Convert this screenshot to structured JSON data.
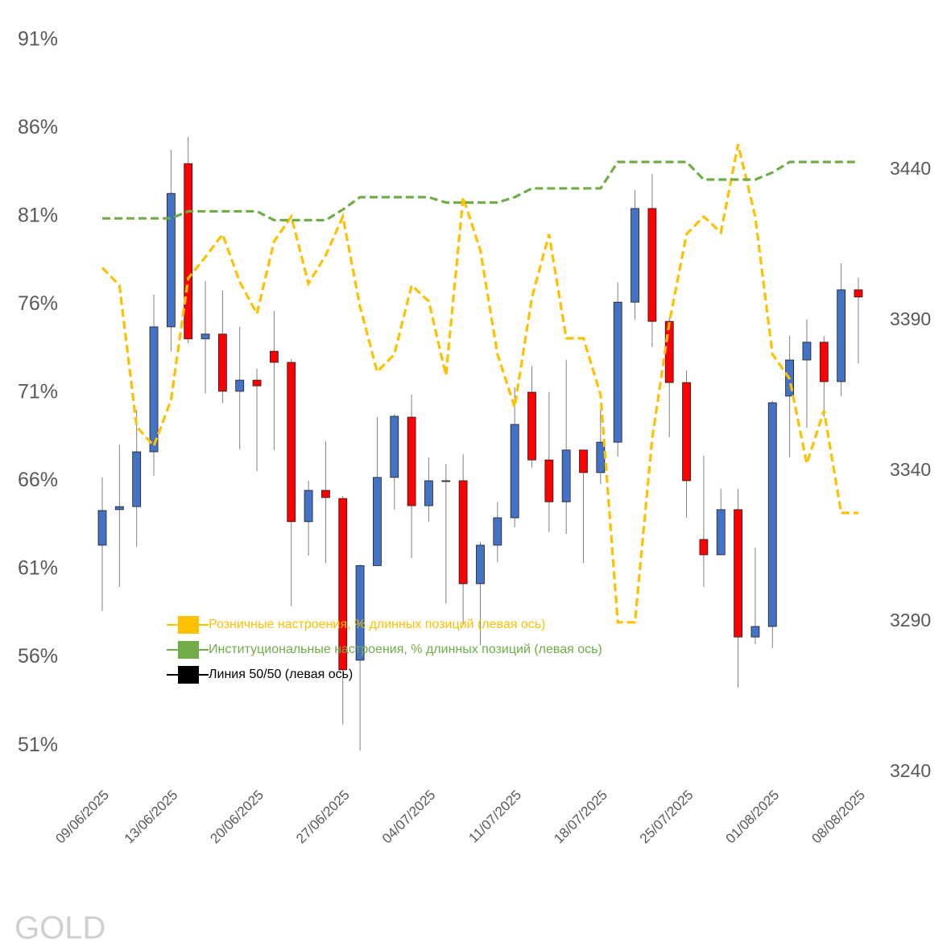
{
  "chart_data": {
    "type": "candlestick",
    "watermark": "GOLD",
    "categories": [
      "09/06/2025",
      null,
      null,
      null,
      "13/06/2025",
      null,
      null,
      null,
      null,
      "20/06/2025",
      null,
      null,
      null,
      null,
      "27/06/2025",
      null,
      null,
      null,
      null,
      "04/07/2025",
      null,
      null,
      null,
      null,
      "11/07/2025",
      null,
      null,
      null,
      null,
      "18/07/2025",
      null,
      null,
      null,
      null,
      "25/07/2025",
      null,
      null,
      null,
      null,
      "01/08/2025",
      null,
      null,
      null,
      null,
      "08/08/2025"
    ],
    "candles": {
      "axis": "y2",
      "up_color": "#4472c4",
      "down_color": "#ff0000",
      "open": [
        3315.4,
        3327.2,
        3328.2,
        3346.4,
        3387.9,
        3442.1,
        3383.9,
        3385.5,
        3366.5,
        3370.2,
        3379.8,
        3376.1,
        3323.2,
        3333.6,
        3330.9,
        3277.2,
        3308.6,
        3337.9,
        3357.9,
        3328.5,
        3336.8,
        3336.8,
        3302.6,
        3315.4,
        3324.5,
        3366.2,
        3343.7,
        3329.8,
        3347.0,
        3339.5,
        3349.6,
        3396.1,
        3427.2,
        3389.7,
        3369.4,
        3317.3,
        3312.2,
        3327.2,
        3284.9,
        3288.4,
        3364.9,
        3376.9,
        3382.8,
        3369.7,
        3400.2
      ],
      "high": [
        3337.9,
        3348.8,
        3360.3,
        3398.6,
        3446.7,
        3451.0,
        3403.1,
        3399.9,
        3387.9,
        3374.0,
        3393.2,
        3377.2,
        3336.8,
        3349.9,
        3331.7,
        3309.0,
        3357.9,
        3359.0,
        3365.4,
        3344.5,
        3342.4,
        3345.6,
        3316.5,
        3329.8,
        3367.8,
        3374.8,
        3366.2,
        3376.9,
        3347.0,
        3361.1,
        3402.6,
        3433.3,
        3438.7,
        3390.8,
        3373.4,
        3345.1,
        3334.1,
        3334.1,
        3314.6,
        3363.3,
        3384.9,
        3390.3,
        3384.9,
        3409.0,
        3404.2
      ],
      "low": [
        3293.5,
        3301.5,
        3314.9,
        3338.4,
        3379.6,
        3382.5,
        3365.7,
        3362.5,
        3347.2,
        3340.0,
        3347.0,
        3295.1,
        3311.9,
        3309.5,
        3255.8,
        3247.2,
        3308.6,
        3327.2,
        3311.1,
        3323.2,
        3296.1,
        3289.0,
        3282.2,
        3309.8,
        3321.3,
        3341.1,
        3319.7,
        3319.1,
        3309.5,
        3335.7,
        3344.8,
        3390.3,
        3381.2,
        3351.2,
        3324.5,
        3301.5,
        3312.2,
        3268.1,
        3282.5,
        3281.2,
        3344.5,
        3354.4,
        3357.9,
        3364.9,
        3375.8
      ],
      "close": [
        3326.9,
        3328.2,
        3346.4,
        3387.9,
        3432.2,
        3383.9,
        3385.5,
        3366.5,
        3370.2,
        3368.3,
        3376.1,
        3323.2,
        3333.6,
        3331.2,
        3274.0,
        3308.6,
        3337.9,
        3358.2,
        3328.5,
        3336.8,
        3336.8,
        3302.6,
        3315.4,
        3324.5,
        3355.5,
        3343.7,
        3329.8,
        3347.0,
        3339.5,
        3349.6,
        3396.1,
        3427.2,
        3389.7,
        3369.4,
        3336.8,
        3312.2,
        3327.2,
        3284.9,
        3288.4,
        3362.7,
        3376.9,
        3382.8,
        3369.7,
        3400.2,
        3397.8
      ]
    },
    "series": [
      {
        "name": "Розничные настроения, % длинных позиций (левая ось)",
        "color": "#ffc000",
        "values": [
          78.1,
          77.1,
          69.1,
          68.0,
          70.6,
          77.5,
          78.7,
          80.0,
          77.3,
          75.5,
          79.6,
          81.0,
          77.2,
          78.8,
          81.0,
          75.9,
          72.2,
          73.2,
          77.1,
          76.2,
          72.0,
          82.1,
          79.1,
          73.2,
          70.2,
          76.4,
          80.0,
          74.1,
          74.1,
          70.9,
          58.0,
          58.0,
          68.4,
          75.0,
          80.0,
          81.0,
          80.1,
          85.1,
          81.0,
          73.2,
          71.8,
          67.0,
          70.0,
          64.2,
          64.2
        ]
      },
      {
        "name": "Институциональные настроения, % длинных позиций (левая ось)",
        "color": "#70ad47",
        "values": [
          80.9,
          80.9,
          80.9,
          80.9,
          80.9,
          81.3,
          81.3,
          81.3,
          81.3,
          81.3,
          80.8,
          80.8,
          80.8,
          80.8,
          81.4,
          82.1,
          82.1,
          82.1,
          82.1,
          82.1,
          81.8,
          81.8,
          81.8,
          81.8,
          82.1,
          82.6,
          82.6,
          82.6,
          82.6,
          82.6,
          84.1,
          84.1,
          84.1,
          84.1,
          84.1,
          83.1,
          83.1,
          83.1,
          83.1,
          83.5,
          84.1,
          84.1,
          84.1,
          84.1,
          84.1
        ]
      },
      {
        "name": "Линия 50/50 (левая ось)",
        "color": "#000000"
      }
    ],
    "ylim": [
      49.5,
      91.5
    ],
    "yticks": [
      {
        "value": 51,
        "label": "51%"
      },
      {
        "value": 56,
        "label": "56%"
      },
      {
        "value": 61,
        "label": "61%"
      },
      {
        "value": 66,
        "label": "66%"
      },
      {
        "value": 71,
        "label": "71%"
      },
      {
        "value": 76,
        "label": "76%"
      },
      {
        "value": 81,
        "label": "81%"
      },
      {
        "value": 86,
        "label": "86%"
      },
      {
        "value": 91,
        "label": "91%"
      }
    ],
    "y2lim": [
      3240,
      3486
    ],
    "y2ticks": [
      3240,
      3290,
      3340,
      3390,
      3440
    ],
    "grid": false,
    "legend": "center"
  }
}
